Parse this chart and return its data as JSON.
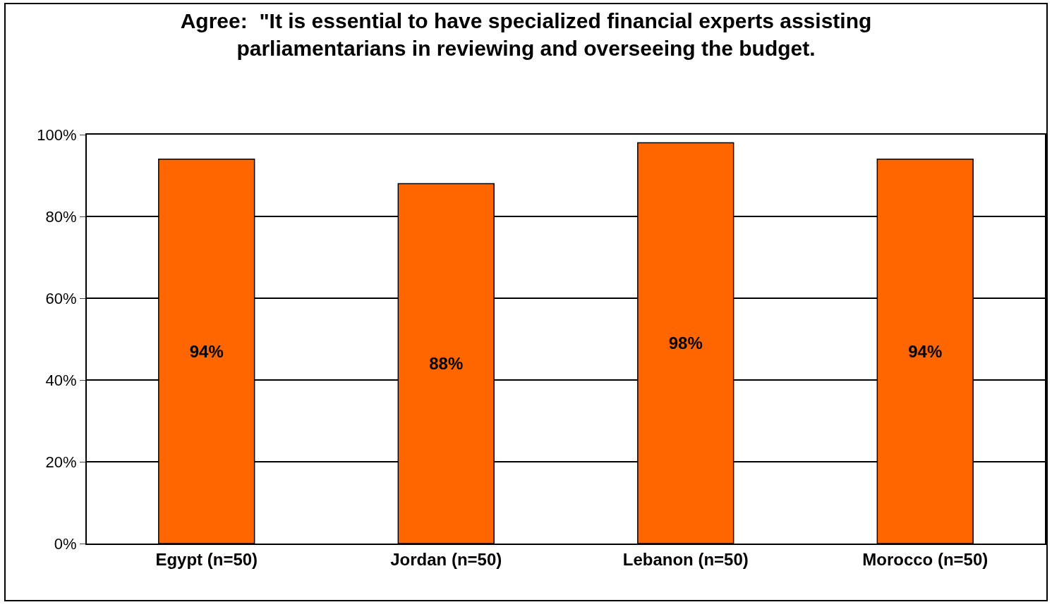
{
  "chart_data": {
    "type": "bar",
    "title": "Agree:  \"It is essential to have specialized financial experts assisting parliamentarians in reviewing and overseeing the budget.",
    "categories": [
      "Egypt (n=50)",
      "Jordan (n=50)",
      "Lebanon (n=50)",
      "Morocco (n=50)"
    ],
    "values": [
      94,
      88,
      98,
      94
    ],
    "value_labels": [
      "94%",
      "88%",
      "98%",
      "94%"
    ],
    "color": "#ff6600",
    "ylim": [
      0,
      100
    ],
    "yticks": [
      {
        "value": 0,
        "label": "0%"
      },
      {
        "value": 20,
        "label": "20%"
      },
      {
        "value": 40,
        "label": "40%"
      },
      {
        "value": 60,
        "label": "60%"
      },
      {
        "value": 80,
        "label": "80%"
      },
      {
        "value": 100,
        "label": "100%"
      }
    ],
    "grid": "y",
    "legend": false
  }
}
